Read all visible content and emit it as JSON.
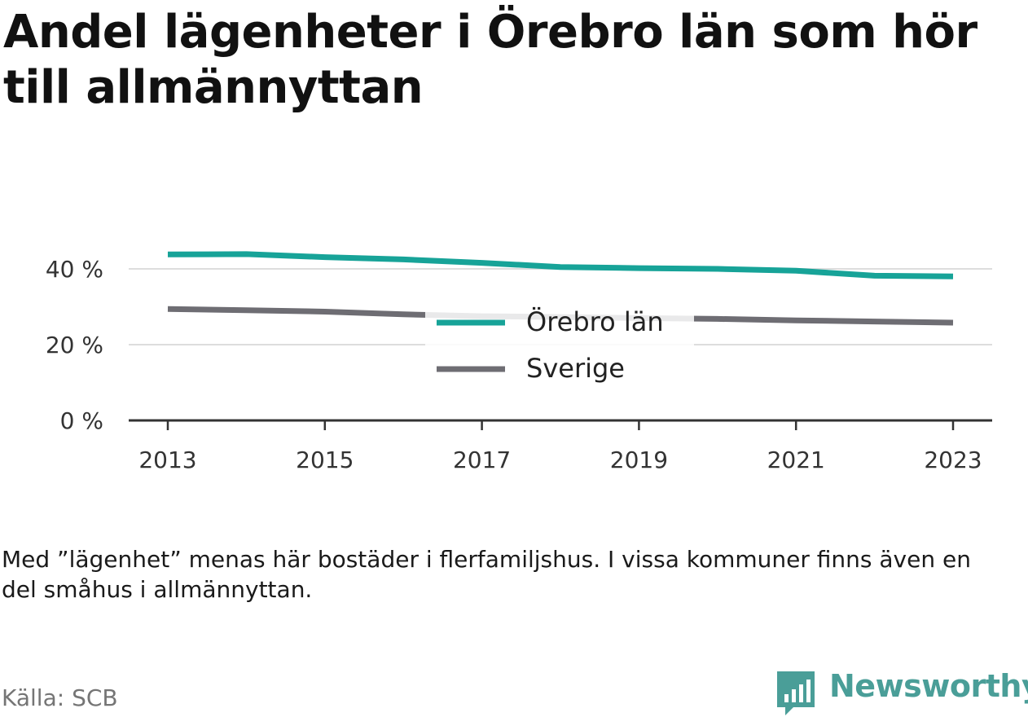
{
  "title": "Andel lägenheter i Örebro län som hör till allmännyttan",
  "note": "Med ”lägenhet” menas här bostäder i flerfamiljshus. I vissa kommuner finns även en del småhus i allmännyttan.",
  "source": "Källa: SCB",
  "brand": "Newsworthy",
  "colors": {
    "orebro": "#17a398",
    "sverige": "#6e6d73",
    "grid": "#dddddd",
    "axis": "#333333",
    "brand": "#4a9e98"
  },
  "chart_data": {
    "type": "line",
    "x": [
      2013,
      2014,
      2015,
      2016,
      2017,
      2018,
      2019,
      2020,
      2021,
      2022,
      2023
    ],
    "x_ticks": [
      "2013",
      "2015",
      "2017",
      "2019",
      "2021",
      "2023"
    ],
    "y_ticks": [
      "0 %",
      "20 %",
      "40 %"
    ],
    "ylim": [
      0,
      45
    ],
    "grid": true,
    "legend_position": "center",
    "series": [
      {
        "name": "Örebro län",
        "color": "#17a398",
        "values": [
          43.8,
          43.9,
          43.1,
          42.5,
          41.6,
          40.5,
          40.2,
          40.0,
          39.5,
          38.2,
          38.0
        ]
      },
      {
        "name": "Sverige",
        "color": "#6e6d73",
        "values": [
          29.4,
          29.1,
          28.7,
          28.0,
          27.5,
          27.3,
          27.0,
          26.8,
          26.4,
          26.1,
          25.8
        ]
      }
    ]
  }
}
